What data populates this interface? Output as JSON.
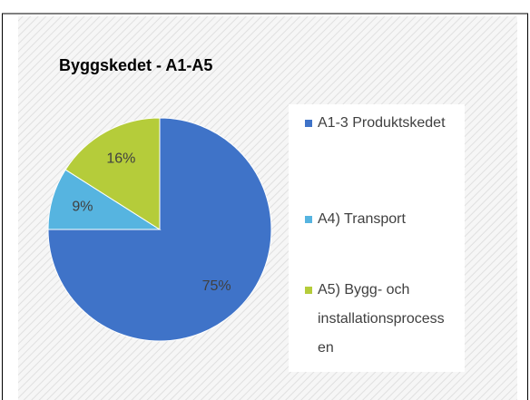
{
  "chart_data": {
    "type": "pie",
    "title": "Byggskedet - A1-A5",
    "categories": [
      "A1-3 Produktskedet",
      "A4) Transport",
      "A5) Bygg- och installationsprocessen"
    ],
    "values": [
      75,
      9,
      16
    ],
    "colors": [
      "#3f73c8",
      "#56b4e0",
      "#b5cc3a"
    ],
    "value_labels": [
      "75%",
      "9%",
      "16%"
    ]
  }
}
